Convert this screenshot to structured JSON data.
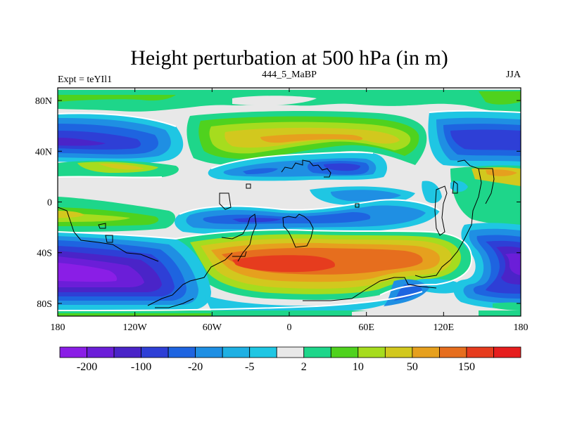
{
  "chart_data": {
    "type": "heatmap",
    "title": "Height perturbation at 500 hPa (in m)",
    "left_label": "Expt = teYIl1",
    "center_label": "444_5_MaBP",
    "right_label": "JJA",
    "x_ticks": [
      "180",
      "120W",
      "60W",
      "0",
      "60E",
      "120E",
      "180"
    ],
    "x_values": [
      -180,
      -120,
      -60,
      0,
      60,
      120,
      180
    ],
    "y_ticks": [
      "80N",
      "40N",
      "0",
      "40S",
      "80S"
    ],
    "y_values": [
      80,
      40,
      0,
      -40,
      -80
    ],
    "xlim": [
      -180,
      180
    ],
    "ylim": [
      -90,
      90
    ],
    "colorbar": {
      "labels": [
        "-200",
        "-100",
        "-20",
        "-5",
        "2",
        "10",
        "50",
        "150"
      ],
      "label_after_box": [
        1,
        3,
        5,
        7,
        9,
        11,
        13,
        15
      ],
      "colors": [
        "#8a1ee6",
        "#6b1ed8",
        "#4a24c8",
        "#2e3fd6",
        "#1e64e0",
        "#1f8fe3",
        "#1fb0e3",
        "#1fc6e3",
        "#e8e8e8",
        "#1ed68a",
        "#4fd21e",
        "#a6dc1e",
        "#d2c81e",
        "#e6a01e",
        "#e66e1e",
        "#e63c1e",
        "#e61e1e"
      ]
    },
    "fields": [
      {
        "name": "background",
        "level": "2",
        "color": "#e8e8e8"
      },
      {
        "name": "north-arctic-band",
        "level": "10",
        "color": "#1ed68a"
      },
      {
        "name": "north-pacific-low",
        "level": "-20",
        "color": "#2e3fd6"
      },
      {
        "name": "north-atlantic-europe-ridge",
        "level": "50",
        "color": "#d2c81e"
      },
      {
        "name": "asia-trough",
        "level": "-20",
        "color": "#2e3fd6"
      },
      {
        "name": "pacific-east-low",
        "level": "-20",
        "color": "#2e3fd6"
      },
      {
        "name": "tropical-trough",
        "level": "-5",
        "color": "#1fb0e3"
      },
      {
        "name": "southern-ocean-ridge",
        "level": "150",
        "color": "#e63c1e"
      },
      {
        "name": "southern-high-latitude-low",
        "level": "-200",
        "color": "#8a1ee6"
      },
      {
        "name": "south-pacific-low",
        "level": "-100",
        "color": "#4a24c8"
      },
      {
        "name": "antarctic-band",
        "level": "10",
        "color": "#1ed68a"
      }
    ]
  }
}
